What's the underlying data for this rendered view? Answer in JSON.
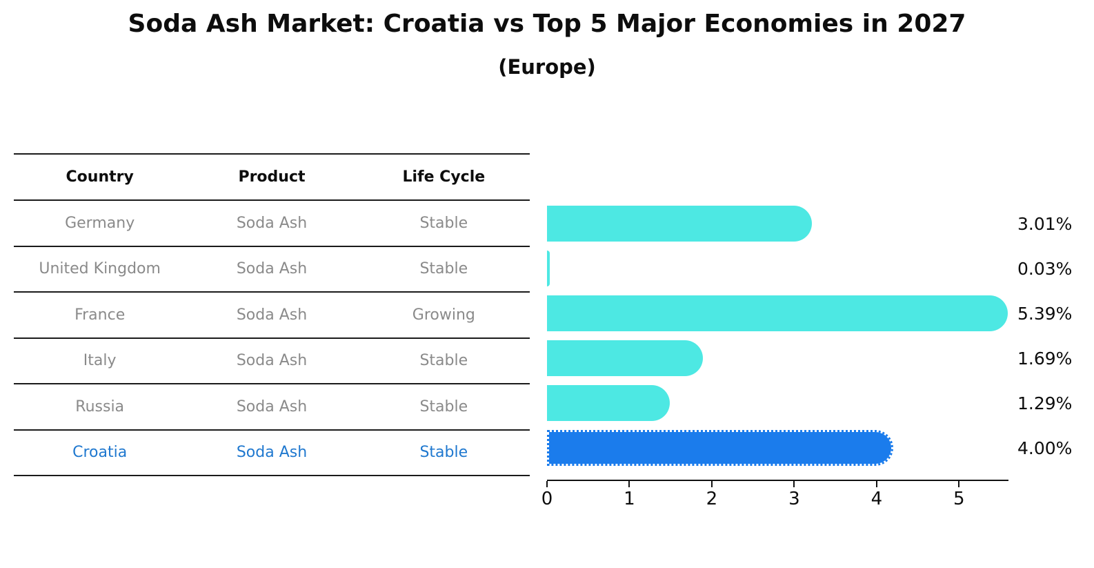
{
  "title": "Soda Ash Market: Croatia vs Top 5 Major Economies in 2027",
  "subtitle": "(Europe)",
  "table": {
    "headers": [
      "Country",
      "Product",
      "Life Cycle"
    ],
    "rows": [
      {
        "country": "Germany",
        "product": "Soda Ash",
        "life_cycle": "Stable",
        "highlighted": false
      },
      {
        "country": "United Kingdom",
        "product": "Soda Ash",
        "life_cycle": "Stable",
        "highlighted": false
      },
      {
        "country": "France",
        "product": "Soda Ash",
        "life_cycle": "Growing",
        "highlighted": false
      },
      {
        "country": "Italy",
        "product": "Soda Ash",
        "life_cycle": "Stable",
        "highlighted": false
      },
      {
        "country": "Russia",
        "product": "Soda Ash",
        "life_cycle": "Stable",
        "highlighted": false
      },
      {
        "country": "Croatia",
        "product": "Soda Ash",
        "life_cycle": "Stable",
        "highlighted": true
      }
    ]
  },
  "chart_data": {
    "type": "bar",
    "orientation": "horizontal",
    "title": "Soda Ash Market: Croatia vs Top 5 Major Economies in 2027 (Europe)",
    "categories": [
      "Germany",
      "United Kingdom",
      "France",
      "Italy",
      "Russia",
      "Croatia"
    ],
    "values": [
      3.01,
      0.03,
      5.39,
      1.69,
      1.29,
      4.0
    ],
    "value_labels": [
      "3.01%",
      "0.03%",
      "5.39%",
      "1.69%",
      "1.29%",
      "4.00%"
    ],
    "unit": "%",
    "x_ticks": [
      0,
      1,
      2,
      3,
      4,
      5
    ],
    "xlim": [
      0,
      5.6
    ],
    "highlight_index": 5,
    "xlabel": "",
    "ylabel": "",
    "grid": false,
    "legend": "none"
  },
  "colors": {
    "bar_default": "#4DE8E3",
    "bar_highlight": "#1B7CEC",
    "highlight_text": "#1f78cf",
    "table_text": "#8a8a8a",
    "heading_text": "#0d0d0d",
    "rule": "#1a1a1a"
  }
}
